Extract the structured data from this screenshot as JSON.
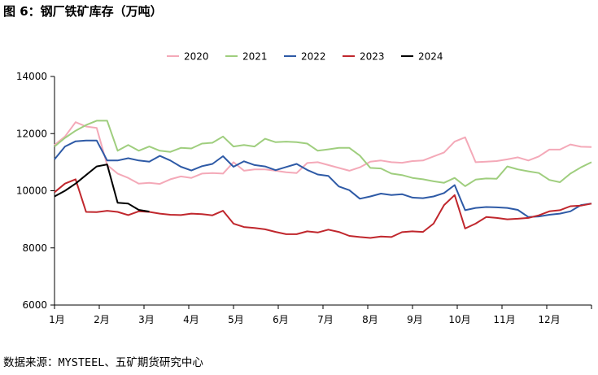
{
  "header": {
    "title": "图 6：钢厂铁矿库存（万吨）"
  },
  "footer": {
    "source": "数据来源：MYSTEEL、五矿期货研究中心"
  },
  "chart_data": {
    "type": "line",
    "title": "图 6：钢厂铁矿库存（万吨）",
    "xlabel": "",
    "ylabel": "",
    "ylim": [
      6000,
      14000
    ],
    "yticks": [
      6000,
      8000,
      10000,
      12000,
      14000
    ],
    "xticks": [
      "1月",
      "2月",
      "3月",
      "4月",
      "5月",
      "6月",
      "7月",
      "8月",
      "9月",
      "10月",
      "11月",
      "12月"
    ],
    "x_unit": "week",
    "grid": false,
    "legend": "top",
    "series": [
      {
        "name": "2020",
        "color": "#f4a9b8",
        "x": [
          1,
          2,
          3,
          4,
          5,
          6,
          7,
          8,
          9,
          10,
          11,
          12,
          13,
          14,
          15,
          16,
          17,
          18,
          19,
          20,
          21,
          22,
          23,
          24,
          25,
          26,
          27,
          28,
          29,
          30,
          31,
          32,
          33,
          34,
          35,
          36,
          37,
          38,
          39,
          40,
          41,
          42,
          43,
          44,
          45,
          46,
          47,
          48,
          49,
          50,
          51,
          52
        ],
        "values": [
          11600,
          11900,
          12400,
          12250,
          12200,
          10900,
          10600,
          10450,
          10250,
          10280,
          10240,
          10400,
          10500,
          10450,
          10600,
          10620,
          10600,
          11000,
          10700,
          10750,
          10750,
          10700,
          10650,
          10620,
          10970,
          11000,
          10900,
          10800,
          10700,
          10820,
          11020,
          11060,
          11000,
          10980,
          11040,
          11060,
          11200,
          11340,
          11720,
          11870,
          11000,
          11020,
          11040,
          11100,
          11170,
          11060,
          11200,
          11440,
          11440,
          11620,
          11540,
          11530
        ]
      },
      {
        "name": "2021",
        "color": "#9fce7e",
        "x": [
          1,
          2,
          3,
          4,
          5,
          6,
          7,
          8,
          9,
          10,
          11,
          12,
          13,
          14,
          15,
          16,
          17,
          18,
          19,
          20,
          21,
          22,
          23,
          24,
          25,
          26,
          27,
          28,
          29,
          30,
          31,
          32,
          33,
          34,
          35,
          36,
          37,
          38,
          39,
          40,
          41,
          42,
          43,
          44,
          45,
          46,
          47,
          48,
          49,
          50,
          51,
          52
        ],
        "values": [
          11550,
          11850,
          12100,
          12300,
          12450,
          12450,
          11400,
          11600,
          11400,
          11550,
          11400,
          11360,
          11500,
          11480,
          11650,
          11680,
          11900,
          11550,
          11600,
          11550,
          11820,
          11700,
          11720,
          11700,
          11650,
          11400,
          11450,
          11500,
          11500,
          11230,
          10800,
          10780,
          10600,
          10550,
          10450,
          10400,
          10330,
          10280,
          10450,
          10160,
          10390,
          10430,
          10420,
          10850,
          10750,
          10680,
          10620,
          10380,
          10300,
          10600,
          10820,
          11000
        ]
      },
      {
        "name": "2022",
        "color": "#2e5aa6",
        "x": [
          1,
          2,
          3,
          4,
          5,
          6,
          7,
          8,
          9,
          10,
          11,
          12,
          13,
          14,
          15,
          16,
          17,
          18,
          19,
          20,
          21,
          22,
          23,
          24,
          25,
          26,
          27,
          28,
          29,
          30,
          31,
          32,
          33,
          34,
          35,
          36,
          37,
          38,
          39,
          40,
          41,
          42,
          43,
          44,
          45,
          46,
          47,
          48,
          49,
          50,
          51,
          52
        ],
        "values": [
          11100,
          11550,
          11730,
          11760,
          11760,
          11060,
          11060,
          11140,
          11060,
          11020,
          11220,
          11060,
          10840,
          10710,
          10860,
          10940,
          11210,
          10840,
          11030,
          10900,
          10850,
          10720,
          10830,
          10940,
          10730,
          10570,
          10520,
          10150,
          10020,
          9720,
          9800,
          9900,
          9850,
          9880,
          9760,
          9740,
          9800,
          9920,
          10200,
          9320,
          9400,
          9430,
          9420,
          9400,
          9330,
          9080,
          9100,
          9160,
          9200,
          9280,
          9500,
          9550
        ]
      },
      {
        "name": "2023",
        "color": "#c0272d",
        "x": [
          1,
          2,
          3,
          4,
          5,
          6,
          7,
          8,
          9,
          10,
          11,
          12,
          13,
          14,
          15,
          16,
          17,
          18,
          19,
          20,
          21,
          22,
          23,
          24,
          25,
          26,
          27,
          28,
          29,
          30,
          31,
          32,
          33,
          34,
          35,
          36,
          37,
          38,
          39,
          40,
          41,
          42,
          43,
          44,
          45,
          46,
          47,
          48,
          49,
          50,
          51,
          52
        ],
        "values": [
          9950,
          10250,
          10400,
          9260,
          9250,
          9300,
          9260,
          9150,
          9280,
          9260,
          9200,
          9160,
          9150,
          9200,
          9180,
          9140,
          9300,
          8850,
          8730,
          8700,
          8650,
          8560,
          8480,
          8480,
          8580,
          8540,
          8640,
          8560,
          8420,
          8380,
          8350,
          8400,
          8380,
          8550,
          8580,
          8560,
          8850,
          9500,
          9850,
          8680,
          8850,
          9080,
          9050,
          9000,
          9020,
          9050,
          9140,
          9280,
          9320,
          9460,
          9480,
          9550
        ]
      },
      {
        "name": "2024",
        "color": "#000000",
        "x": [
          1,
          2,
          3,
          4,
          5,
          6,
          7,
          8,
          9,
          10
        ],
        "values": [
          9800,
          10000,
          10250,
          10550,
          10850,
          10920,
          9580,
          9550,
          9330,
          9270
        ]
      }
    ]
  }
}
